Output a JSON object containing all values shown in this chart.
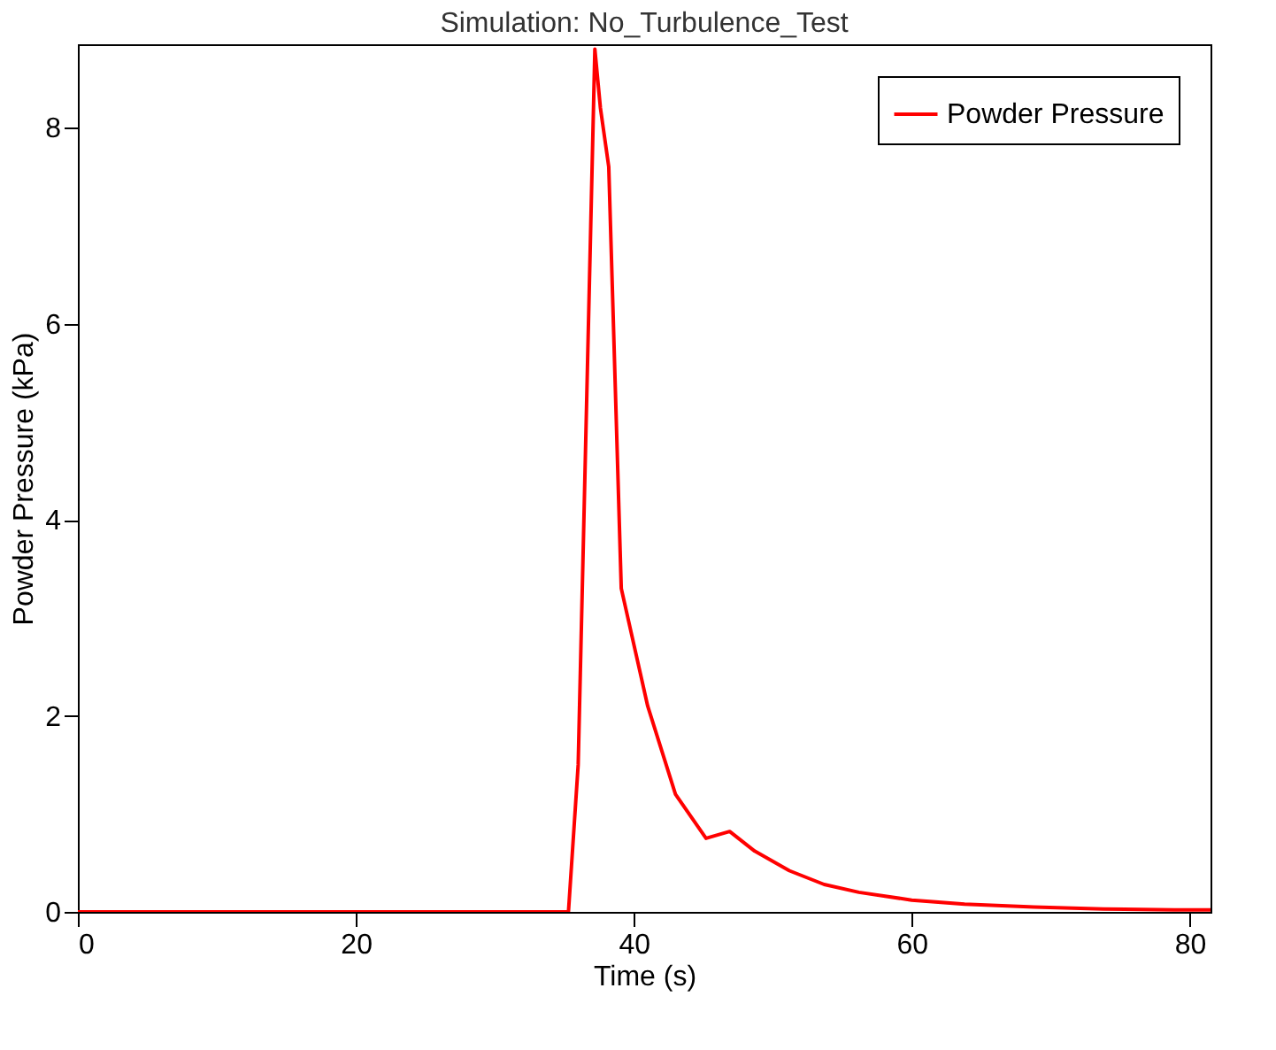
{
  "chart_data": {
    "type": "line",
    "title": "Simulation: No_Turbulence_Test",
    "xlabel": "Time (s)",
    "ylabel": "Powder Pressure (kPa)",
    "x": [
      0,
      10,
      20,
      30,
      35.3,
      36,
      37.2,
      37.6,
      38.2,
      39.1,
      41,
      43,
      45.2,
      46.9,
      48.7,
      51.2,
      53.7,
      56.2,
      60,
      63.8,
      68.8,
      73.8,
      78.9,
      81.5
    ],
    "series": [
      {
        "name": "Powder Pressure",
        "color": "#ff0000",
        "values": [
          0,
          0,
          0,
          0,
          0,
          1.5,
          8.8,
          8.2,
          7.6,
          3.3,
          2.1,
          1.2,
          0.75,
          0.82,
          0.62,
          0.42,
          0.28,
          0.2,
          0.12,
          0.08,
          0.05,
          0.03,
          0.02,
          0.02
        ]
      }
    ],
    "xlim": [
      0,
      81.5
    ],
    "ylim": [
      0,
      8.85
    ],
    "xticks": [
      0,
      20,
      40,
      60,
      80
    ],
    "yticks": [
      0,
      2,
      4,
      6,
      8
    ],
    "grid": false,
    "legend": "top right",
    "marker": "none",
    "line_style": "solid"
  }
}
